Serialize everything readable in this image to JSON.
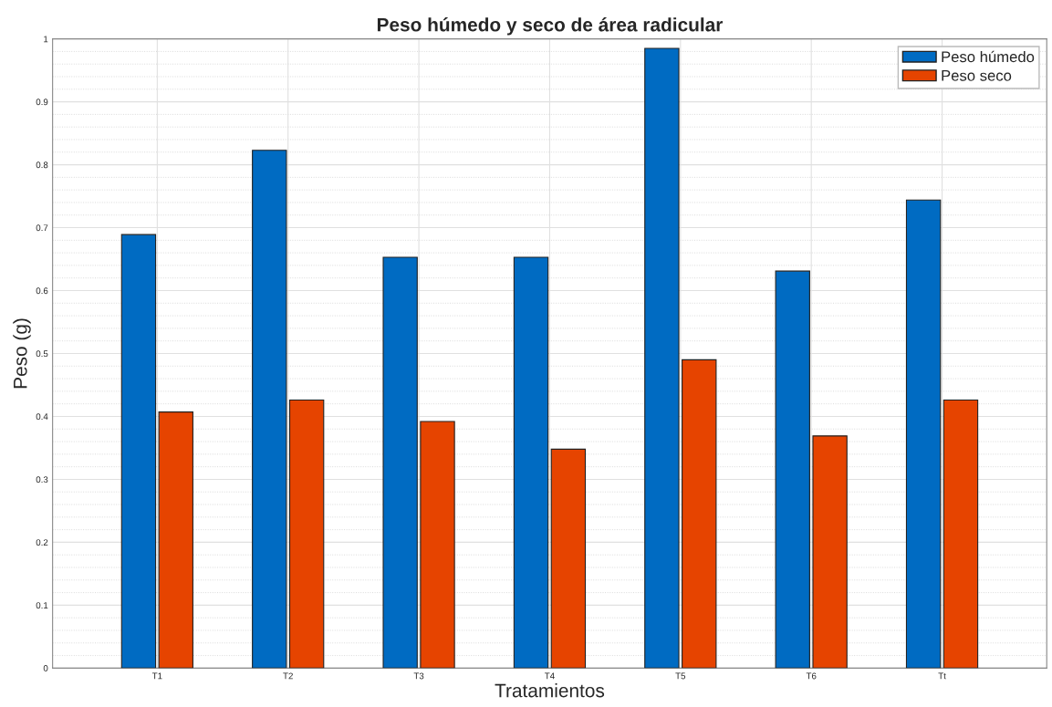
{
  "chart_data": {
    "type": "bar",
    "title": "Peso húmedo y seco de área radicular",
    "xlabel": "Tratamientos",
    "ylabel": "Peso (g)",
    "categories": [
      "T1",
      "T2",
      "T3",
      "T4",
      "T5",
      "T6",
      "Tt"
    ],
    "series": [
      {
        "name": "Peso húmedo",
        "color": "#006bc2",
        "values": [
          0.689,
          0.823,
          0.653,
          0.653,
          0.985,
          0.631,
          0.744
        ]
      },
      {
        "name": "Peso seco",
        "color": "#e64400",
        "values": [
          0.407,
          0.426,
          0.392,
          0.348,
          0.49,
          0.369,
          0.426
        ]
      }
    ],
    "ylim": [
      0,
      1
    ],
    "yticks": [
      0,
      0.1,
      0.2,
      0.3,
      0.4,
      0.5,
      0.6,
      0.7,
      0.8,
      0.9,
      1
    ],
    "grid": true,
    "legend": "top right"
  }
}
